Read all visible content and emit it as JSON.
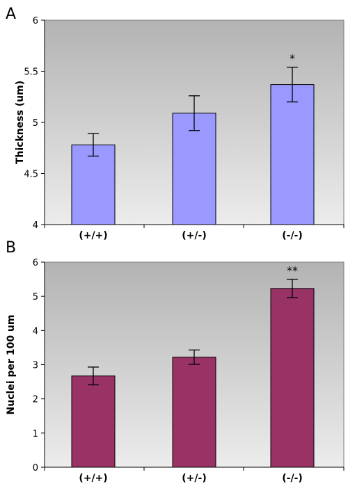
{
  "chart_data": [
    {
      "type": "bar",
      "panel_label": "A",
      "title": "",
      "xlabel": "",
      "ylabel": "Thickness (um)",
      "categories": [
        "(+/+)",
        "(+/-)",
        "(-/-)"
      ],
      "values": [
        4.78,
        5.09,
        5.37
      ],
      "errors": [
        0.11,
        0.17,
        0.17
      ],
      "annotations": [
        "",
        "",
        "*"
      ],
      "ylim": [
        4,
        6
      ],
      "yticks": [
        4,
        4.5,
        5,
        5.5,
        6
      ],
      "ytick_labels": [
        "4",
        "4.5",
        "5",
        "5.5",
        "6"
      ],
      "bar_color": "#9999ff",
      "grid": false,
      "legend": "none"
    },
    {
      "type": "bar",
      "panel_label": "B",
      "title": "",
      "xlabel": "",
      "ylabel": "Nuclei per 100 um",
      "categories": [
        "(+/+)",
        "(+/-)",
        "(-/-)"
      ],
      "values": [
        2.67,
        3.22,
        5.23
      ],
      "errors": [
        0.26,
        0.21,
        0.27
      ],
      "annotations": [
        "",
        "",
        "**"
      ],
      "ylim": [
        0,
        6
      ],
      "yticks": [
        0,
        1,
        2,
        3,
        4,
        5,
        6
      ],
      "ytick_labels": [
        "0",
        "1",
        "2",
        "3",
        "4",
        "5",
        "6"
      ],
      "bar_color": "#993366",
      "grid": false,
      "legend": "none"
    }
  ]
}
